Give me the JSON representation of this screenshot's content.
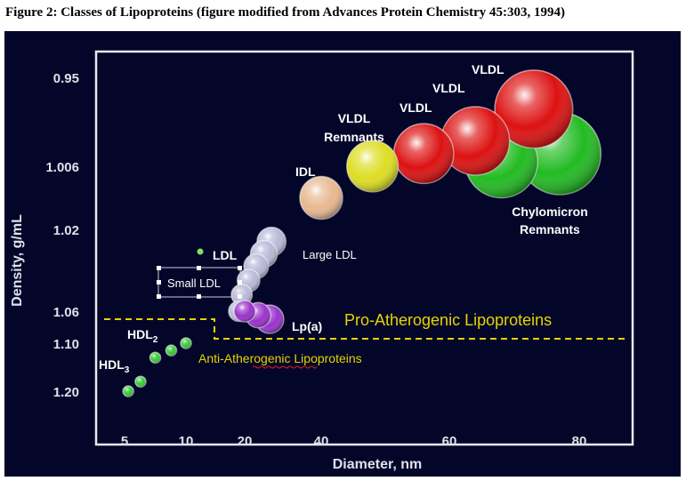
{
  "caption": "Figure 2: Classes of Lipoproteins (figure modified from Advances Protein Chemistry 45:303, 1994)",
  "chart_data": {
    "type": "scatter",
    "xlabel": "Diameter, nm",
    "ylabel": "Density, g/mL",
    "x_ticks": [
      "5",
      "10",
      "20",
      "40",
      "60",
      "80"
    ],
    "y_ticks": [
      "0.95",
      "1.006",
      "1.02",
      "1.06",
      "1.10",
      "1.20"
    ],
    "colors": {
      "hdl": "#33cc33",
      "ldl": "#b8b8d8",
      "lpa": "#9933cc",
      "idl": "#e8b890",
      "vldl_remnants": "#dddd22",
      "vldl": "#dd1111",
      "chylomicron_remnants": "#22bb22",
      "pro_line": "#e6d400",
      "anti_text": "#e6d400"
    },
    "groups": [
      {
        "label": "HDL3",
        "base": "HDL",
        "sub": "3",
        "color": "#33cc33",
        "points": [
          {
            "x": 5.3,
            "y": 1.2
          },
          {
            "x": 6.3,
            "y": 1.18
          }
        ]
      },
      {
        "label": "HDL2",
        "base": "HDL",
        "sub": "2",
        "color": "#33cc33",
        "points": [
          {
            "x": 7.5,
            "y": 1.13
          },
          {
            "x": 8.8,
            "y": 1.115
          },
          {
            "x": 10.0,
            "y": 1.1
          }
        ]
      },
      {
        "label": "LDL",
        "color": "#b8b8d8",
        "points": [
          {
            "x": 19.0,
            "y": 1.06
          },
          {
            "x": 19.5,
            "y": 1.052
          },
          {
            "x": 21.0,
            "y": 1.045
          },
          {
            "x": 23.0,
            "y": 1.038
          },
          {
            "x": 25.0,
            "y": 1.032
          },
          {
            "x": 27.0,
            "y": 1.026
          }
        ]
      },
      {
        "label": "Lp(a)",
        "color": "#9933cc",
        "points": [
          {
            "x": 20.0,
            "y": 1.06
          },
          {
            "x": 23.5,
            "y": 1.065
          },
          {
            "x": 26.5,
            "y": 1.07
          }
        ]
      },
      {
        "label": "IDL",
        "color": "#e8b890",
        "points": [
          {
            "x": 40.0,
            "y": 1.013
          }
        ]
      },
      {
        "label": "VLDL Remnants",
        "color": "#dddd22",
        "points": [
          {
            "x": 48.0,
            "y": 1.006
          }
        ]
      },
      {
        "label": "VLDL",
        "color": "#dd1111",
        "points": [
          {
            "x": 56.0,
            "y": 0.998
          },
          {
            "x": 64.0,
            "y": 0.99
          },
          {
            "x": 73.0,
            "y": 0.97
          }
        ]
      },
      {
        "label": "Chylomicron Remnants",
        "color": "#22bb22",
        "points": [
          {
            "x": 68.0,
            "y": 1.003
          },
          {
            "x": 77.0,
            "y": 0.998
          }
        ]
      }
    ],
    "labels": {
      "ldl": "LDL",
      "small_ldl": "Small LDL",
      "large_ldl": "Large LDL",
      "lpa": "Lp(a)",
      "idl": "IDL",
      "vldl_remnants_1": "VLDL",
      "vldl_remnants_2": "Remnants",
      "vldl": "VLDL",
      "chylo_1": "Chylomicron",
      "chylo_2": "Remnants",
      "hdl_base": "HDL",
      "hdl2_sub": "2",
      "hdl3_sub": "3",
      "pro": "Pro-Atherogenic Lipoproteins",
      "anti": "Anti-Atherogenic Lipoproteins"
    },
    "legend": "none",
    "grid": false
  }
}
